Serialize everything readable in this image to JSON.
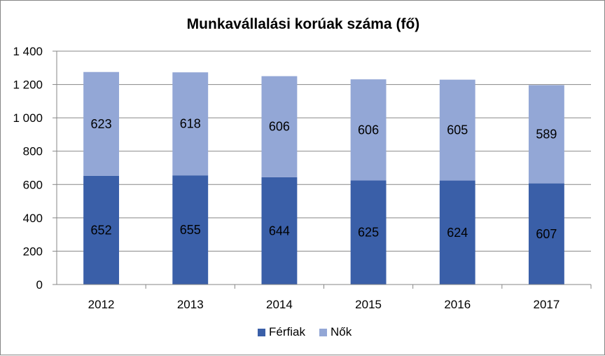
{
  "chart_data": {
    "type": "bar",
    "stacked": true,
    "title": "Munkavállalási korúak száma (fő)",
    "categories": [
      "2012",
      "2013",
      "2014",
      "2015",
      "2016",
      "2017"
    ],
    "series": [
      {
        "name": "Férfiak",
        "values": [
          652,
          655,
          644,
          625,
          624,
          607
        ],
        "color": "#3A5FA8"
      },
      {
        "name": "Nők",
        "values": [
          623,
          618,
          606,
          606,
          605,
          589
        ],
        "color": "#93A7D6"
      }
    ],
    "ylim": [
      0,
      1400
    ],
    "yticks": [
      0,
      200,
      400,
      600,
      800,
      1000,
      1200,
      1400
    ],
    "ytick_labels": [
      "0",
      "200",
      "400",
      "600",
      "800",
      "1 000",
      "1 200",
      "1 400"
    ],
    "grid": true,
    "legend_position": "bottom",
    "data_labels": true
  }
}
